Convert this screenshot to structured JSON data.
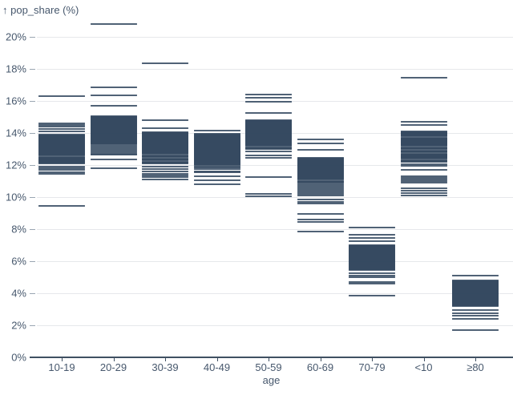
{
  "title": "↑ pop_share (%)",
  "colors": {
    "tick": "#31475e",
    "grid": "#e6e8eb",
    "axis_text": "#47586d",
    "baseline": "#3f5062",
    "background": "#ffffff"
  },
  "y_axis": {
    "ticks": [
      0,
      2,
      4,
      6,
      8,
      10,
      12,
      14,
      16,
      18,
      20
    ],
    "unit": "%"
  },
  "chart_data": {
    "type": "tick",
    "title": "pop_share (%) by age",
    "xlabel": "age",
    "ylabel": "pop_share (%)",
    "ylim": [
      0,
      21.5
    ],
    "grid": true,
    "legend": false,
    "categories": [
      "10-19",
      "20-29",
      "30-39",
      "40-49",
      "50-59",
      "60-69",
      "70-79",
      "<10",
      "≥80"
    ],
    "series": [
      {
        "name": "10-19",
        "values": [
          16.3,
          14.6,
          14.5,
          14.4,
          14.25,
          14.1,
          13.9,
          13.85,
          13.8,
          13.75,
          13.7,
          13.65,
          13.6,
          13.55,
          13.5,
          13.45,
          13.4,
          13.35,
          13.3,
          13.25,
          13.2,
          13.15,
          13.1,
          13.05,
          13.0,
          12.95,
          12.9,
          12.85,
          12.8,
          12.75,
          12.7,
          12.65,
          12.6,
          12.5,
          12.45,
          12.4,
          12.35,
          12.3,
          12.25,
          12.2,
          12.15,
          12.1,
          11.9,
          11.8,
          11.7,
          11.55,
          11.45,
          9.45
        ]
      },
      {
        "name": "20-29",
        "values": [
          20.8,
          16.85,
          16.35,
          15.7,
          15.05,
          15.0,
          14.95,
          14.9,
          14.85,
          14.8,
          14.75,
          14.7,
          14.65,
          14.6,
          14.55,
          14.5,
          14.45,
          14.4,
          14.35,
          14.3,
          14.25,
          14.2,
          14.15,
          14.1,
          14.05,
          14.0,
          13.95,
          13.9,
          13.85,
          13.8,
          13.75,
          13.7,
          13.65,
          13.6,
          13.55,
          13.5,
          13.45,
          13.4,
          13.35,
          13.3,
          13.2,
          13.1,
          13.0,
          12.9,
          12.8,
          12.7,
          12.65,
          12.35,
          11.8
        ]
      },
      {
        "name": "30-39",
        "values": [
          18.35,
          14.8,
          14.3,
          14.05,
          14.0,
          13.95,
          13.9,
          13.85,
          13.8,
          13.75,
          13.7,
          13.65,
          13.6,
          13.55,
          13.5,
          13.45,
          13.4,
          13.35,
          13.3,
          13.25,
          13.2,
          13.15,
          13.1,
          13.05,
          13.0,
          12.95,
          12.9,
          12.85,
          12.8,
          12.75,
          12.7,
          12.6,
          12.55,
          12.5,
          12.4,
          12.35,
          12.3,
          12.2,
          12.15,
          12.1,
          11.9,
          11.75,
          11.6,
          11.45,
          11.35,
          11.25,
          11.1
        ]
      },
      {
        "name": "40-49",
        "values": [
          14.15,
          13.95,
          13.9,
          13.85,
          13.8,
          13.75,
          13.7,
          13.65,
          13.6,
          13.55,
          13.5,
          13.45,
          13.4,
          13.35,
          13.3,
          13.25,
          13.2,
          13.15,
          13.1,
          13.05,
          13.0,
          12.95,
          12.9,
          12.85,
          12.8,
          12.75,
          12.7,
          12.65,
          12.6,
          12.55,
          12.5,
          12.45,
          12.4,
          12.35,
          12.3,
          12.25,
          12.2,
          12.15,
          12.1,
          12.05,
          12.0,
          11.9,
          11.85,
          11.75,
          11.6,
          11.55,
          11.3,
          11.05,
          10.8
        ]
      },
      {
        "name": "50-59",
        "values": [
          16.4,
          16.2,
          15.95,
          15.25,
          14.8,
          14.75,
          14.7,
          14.65,
          14.6,
          14.55,
          14.5,
          14.45,
          14.4,
          14.35,
          14.3,
          14.25,
          14.2,
          14.15,
          14.1,
          14.05,
          14.0,
          13.95,
          13.9,
          13.85,
          13.8,
          13.75,
          13.7,
          13.65,
          13.6,
          13.55,
          13.5,
          13.45,
          13.4,
          13.35,
          13.3,
          13.25,
          13.2,
          13.1,
          13.05,
          13.0,
          12.85,
          12.6,
          12.45,
          11.25,
          10.2,
          10.05
        ]
      },
      {
        "name": "60-69",
        "values": [
          13.6,
          13.35,
          12.95,
          12.45,
          12.4,
          12.35,
          12.3,
          12.25,
          12.2,
          12.15,
          12.1,
          12.05,
          12.0,
          11.95,
          11.9,
          11.85,
          11.8,
          11.75,
          11.7,
          11.65,
          11.6,
          11.55,
          11.5,
          11.45,
          11.4,
          11.35,
          11.3,
          11.25,
          11.2,
          11.15,
          11.1,
          11.0,
          10.95,
          10.9,
          10.8,
          10.7,
          10.6,
          10.5,
          10.4,
          10.3,
          10.2,
          10.1,
          9.85,
          9.7,
          9.6,
          8.95,
          8.6,
          8.45,
          7.85
        ]
      },
      {
        "name": "70-79",
        "values": [
          8.1,
          7.65,
          7.45,
          7.25,
          7.0,
          6.95,
          6.9,
          6.85,
          6.8,
          6.75,
          6.7,
          6.65,
          6.6,
          6.55,
          6.5,
          6.45,
          6.4,
          6.35,
          6.3,
          6.25,
          6.2,
          6.15,
          6.1,
          6.05,
          6.0,
          5.95,
          5.9,
          5.85,
          5.8,
          5.75,
          5.7,
          5.65,
          5.6,
          5.55,
          5.5,
          5.45,
          5.25,
          5.1,
          5.0,
          4.7,
          4.6,
          3.85
        ]
      },
      {
        "name": "<10",
        "values": [
          17.45,
          14.7,
          14.5,
          14.1,
          14.05,
          14.0,
          13.95,
          13.9,
          13.85,
          13.8,
          13.7,
          13.65,
          13.6,
          13.55,
          13.5,
          13.45,
          13.4,
          13.35,
          13.3,
          13.25,
          13.2,
          13.1,
          13.05,
          13.0,
          12.9,
          12.85,
          12.8,
          12.7,
          12.65,
          12.6,
          12.55,
          12.5,
          12.45,
          12.4,
          12.3,
          12.25,
          12.2,
          12.05,
          11.95,
          11.7,
          11.3,
          11.2,
          11.1,
          11.0,
          10.9,
          10.55,
          10.4,
          10.25,
          10.1
        ]
      },
      {
        "name": "≥80",
        "values": [
          5.1,
          4.8,
          4.75,
          4.7,
          4.65,
          4.6,
          4.55,
          4.5,
          4.45,
          4.4,
          4.35,
          4.3,
          4.25,
          4.2,
          4.15,
          4.1,
          4.05,
          4.0,
          3.95,
          3.9,
          3.85,
          3.8,
          3.75,
          3.7,
          3.65,
          3.6,
          3.55,
          3.5,
          3.45,
          3.4,
          3.35,
          3.3,
          3.25,
          3.2,
          2.95,
          2.75,
          2.6,
          2.4,
          1.7
        ]
      }
    ]
  }
}
